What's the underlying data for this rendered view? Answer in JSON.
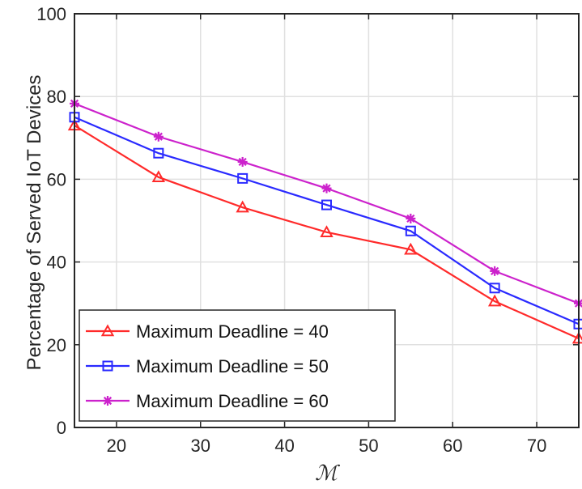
{
  "chart_data": {
    "type": "line",
    "x": [
      15,
      25,
      35,
      45,
      55,
      65,
      75
    ],
    "xlabel": "ℳ",
    "ylabel": "Percentage of Served IoT Devices",
    "xlim": [
      15,
      75
    ],
    "ylim": [
      0,
      100
    ],
    "xticks": [
      "20",
      "30",
      "40",
      "50",
      "60",
      "70"
    ],
    "yticks": [
      "0",
      "20",
      "40",
      "60",
      "80",
      "100"
    ],
    "grid": true,
    "legend_position": "bottom-left",
    "series": [
      {
        "name": "Maximum Deadline = 40",
        "values": [
          73,
          60.5,
          53.2,
          47.2,
          43,
          30.5,
          21.5
        ],
        "color": "#ff2a2a",
        "marker": "triangle"
      },
      {
        "name": "Maximum Deadline = 50",
        "values": [
          75,
          66.3,
          60.2,
          53.8,
          47.5,
          33.7,
          25
        ],
        "color": "#2a2aff",
        "marker": "square"
      },
      {
        "name": "Maximum Deadline = 60",
        "values": [
          78.3,
          70.3,
          64.2,
          57.8,
          50.5,
          37.8,
          30
        ],
        "color": "#cc22cc",
        "marker": "star"
      }
    ]
  }
}
